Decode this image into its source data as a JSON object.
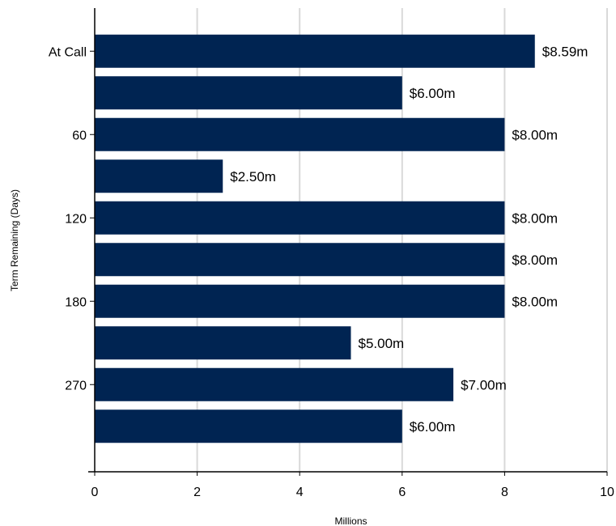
{
  "chart_data": {
    "type": "bar",
    "orientation": "horizontal",
    "xlabel": "Millions",
    "ylabel": "Term Remaining  (Days)",
    "xlim": [
      0,
      10
    ],
    "x_ticks": [
      "0",
      "2",
      "4",
      "6",
      "8",
      "10"
    ],
    "categories": [
      "At Call",
      "",
      "60",
      "",
      "120",
      "",
      "180",
      "",
      "270",
      ""
    ],
    "values": [
      8.59,
      6.0,
      8.0,
      2.5,
      8.0,
      8.0,
      8.0,
      5.0,
      7.0,
      6.0
    ],
    "data_labels": [
      "$8.59m",
      "$6.00m",
      "$8.00m",
      "$2.50m",
      "$8.00m",
      "$8.00m",
      "$8.00m",
      "$5.00m",
      "$7.00m",
      "$6.00m"
    ],
    "grid": true,
    "bar_color": "#002452"
  }
}
